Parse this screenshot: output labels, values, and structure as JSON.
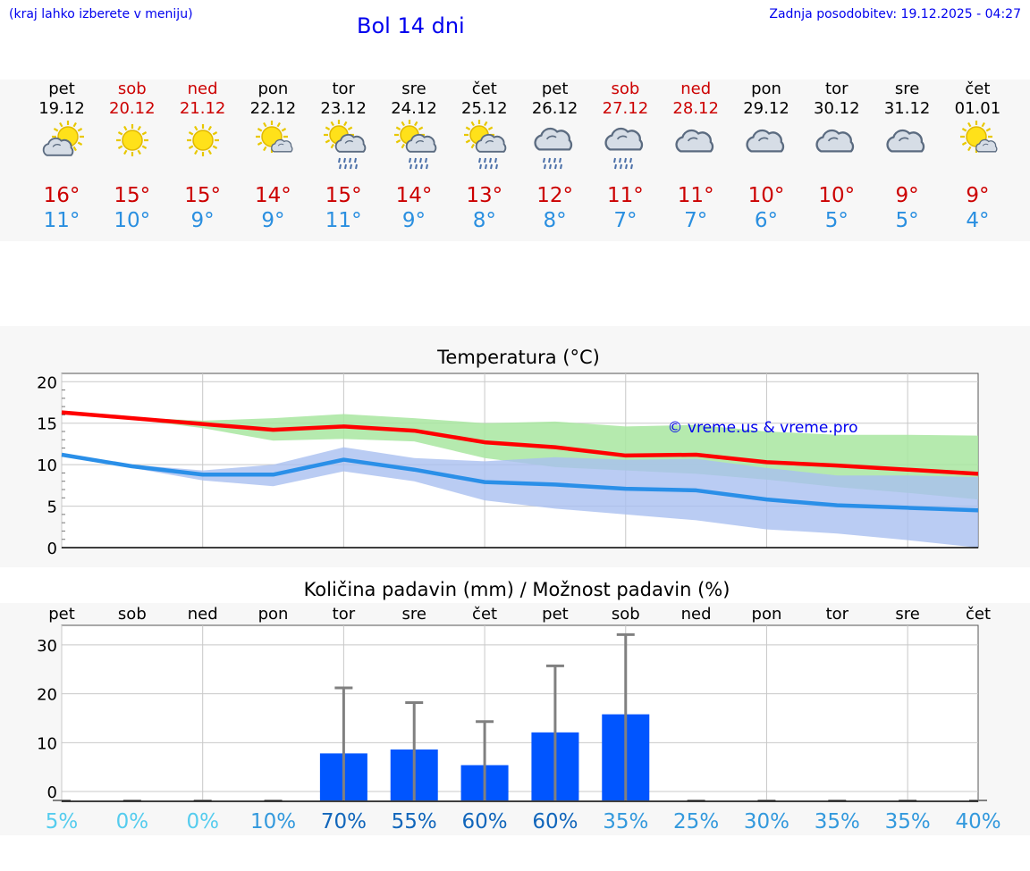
{
  "header": {
    "left_note": "(kraj lahko izberete v meniju)",
    "title": "Bol 14 dni",
    "updated": "Zadnja posodobitev: 19.12.2025 - 04:27"
  },
  "colors": {
    "max_temp": "#ff0000",
    "min_temp": "#2a8fe8",
    "band_max": "#a8e6a0",
    "band_min": "#a9bff0",
    "bar": "#0055ff",
    "error": "#808080"
  },
  "days": [
    {
      "day": "pet",
      "date": "19.12",
      "weekend": false,
      "icon": "sun-cloud-icon",
      "tmax": "16°",
      "tmin": "11°"
    },
    {
      "day": "sob",
      "date": "20.12",
      "weekend": true,
      "icon": "sun-icon",
      "tmax": "15°",
      "tmin": "10°"
    },
    {
      "day": "ned",
      "date": "21.12",
      "weekend": true,
      "icon": "sun-icon",
      "tmax": "15°",
      "tmin": "9°"
    },
    {
      "day": "pon",
      "date": "22.12",
      "weekend": false,
      "icon": "sun-small-cloud-icon",
      "tmax": "14°",
      "tmin": "9°"
    },
    {
      "day": "tor",
      "date": "23.12",
      "weekend": false,
      "icon": "sun-cloud-rain-icon",
      "tmax": "15°",
      "tmin": "11°"
    },
    {
      "day": "sre",
      "date": "24.12",
      "weekend": false,
      "icon": "sun-cloud-rain-icon",
      "tmax": "14°",
      "tmin": "9°"
    },
    {
      "day": "čet",
      "date": "25.12",
      "weekend": false,
      "icon": "sun-cloud-rain-icon",
      "tmax": "13°",
      "tmin": "8°"
    },
    {
      "day": "pet",
      "date": "26.12",
      "weekend": false,
      "icon": "cloud-rain-icon",
      "tmax": "12°",
      "tmin": "8°"
    },
    {
      "day": "sob",
      "date": "27.12",
      "weekend": true,
      "icon": "cloud-rain-icon",
      "tmax": "11°",
      "tmin": "7°"
    },
    {
      "day": "ned",
      "date": "28.12",
      "weekend": true,
      "icon": "cloud-icon",
      "tmax": "11°",
      "tmin": "7°"
    },
    {
      "day": "pon",
      "date": "29.12",
      "weekend": false,
      "icon": "cloud-icon",
      "tmax": "10°",
      "tmin": "6°"
    },
    {
      "day": "tor",
      "date": "30.12",
      "weekend": false,
      "icon": "cloud-icon",
      "tmax": "10°",
      "tmin": "5°"
    },
    {
      "day": "sre",
      "date": "31.12",
      "weekend": false,
      "icon": "cloud-icon",
      "tmax": "9°",
      "tmin": "5°"
    },
    {
      "day": "čet",
      "date": "01.01",
      "weekend": false,
      "icon": "sun-small-cloud-icon",
      "tmax": "9°",
      "tmin": "4°"
    }
  ],
  "chart_data": [
    {
      "type": "line",
      "title": "Temperatura (°C)",
      "watermark": "© vreme.us & vreme.pro",
      "x": [
        0,
        1,
        2,
        3,
        4,
        5,
        6,
        7,
        8,
        9,
        10,
        11,
        12,
        13
      ],
      "ylim": [
        0,
        21
      ],
      "yticks": [
        0,
        5,
        10,
        15,
        20
      ],
      "grid": true,
      "series": [
        {
          "name": "max",
          "values": [
            16.3,
            15.6,
            14.9,
            14.2,
            14.6,
            14.1,
            12.7,
            12.1,
            11.1,
            11.2,
            10.3,
            9.9,
            9.4,
            8.9
          ]
        },
        {
          "name": "min",
          "values": [
            11.2,
            9.8,
            8.8,
            8.8,
            10.6,
            9.4,
            7.9,
            7.6,
            7.1,
            6.9,
            5.8,
            5.1,
            4.8,
            4.5
          ]
        }
      ],
      "bands": [
        {
          "name": "max-range",
          "low": [
            16.2,
            15.5,
            14.4,
            12.9,
            13.1,
            12.8,
            10.8,
            9.7,
            9.3,
            8.9,
            8.2,
            7.3,
            6.6,
            5.8
          ],
          "high": [
            16.5,
            15.7,
            15.3,
            15.6,
            16.1,
            15.6,
            15.0,
            15.2,
            14.6,
            14.8,
            14.0,
            13.6,
            13.6,
            13.5
          ]
        },
        {
          "name": "min-range",
          "low": [
            11.0,
            9.6,
            8.1,
            7.4,
            9.2,
            8.0,
            5.7,
            4.7,
            4.0,
            3.3,
            2.2,
            1.7,
            0.9,
            0.0
          ],
          "high": [
            11.4,
            10.0,
            9.3,
            10.0,
            12.1,
            10.8,
            10.4,
            10.9,
            10.6,
            10.7,
            9.6,
            8.7,
            8.7,
            8.5
          ]
        }
      ]
    },
    {
      "type": "bar",
      "title": "Količina padavin (mm) / Možnost padavin (%)",
      "categories": [
        "pet",
        "sob",
        "ned",
        "pon",
        "tor",
        "sre",
        "čet",
        "pet",
        "sob",
        "ned",
        "pon",
        "tor",
        "sre",
        "čet"
      ],
      "values": [
        0,
        0,
        0,
        0,
        7.8,
        8.6,
        5.4,
        12.1,
        15.8,
        0,
        0,
        0,
        0,
        0
      ],
      "error_high": [
        0,
        0,
        0,
        0,
        21.2,
        18.2,
        14.3,
        25.7,
        32.1,
        0,
        0,
        0,
        0,
        0
      ],
      "ylim": [
        -2,
        34
      ],
      "yticks": [
        0,
        10,
        20,
        30
      ],
      "grid": true,
      "probabilities": [
        "5%",
        "0%",
        "0%",
        "10%",
        "70%",
        "55%",
        "60%",
        "60%",
        "35%",
        "25%",
        "30%",
        "35%",
        "35%",
        "40%"
      ],
      "probability_colors": [
        "#55ccee",
        "#55ccee",
        "#55ccee",
        "#3399dd",
        "#1166bb",
        "#1166bb",
        "#1166bb",
        "#1166bb",
        "#3399dd",
        "#3399dd",
        "#3399dd",
        "#3399dd",
        "#3399dd",
        "#3399dd"
      ]
    }
  ]
}
